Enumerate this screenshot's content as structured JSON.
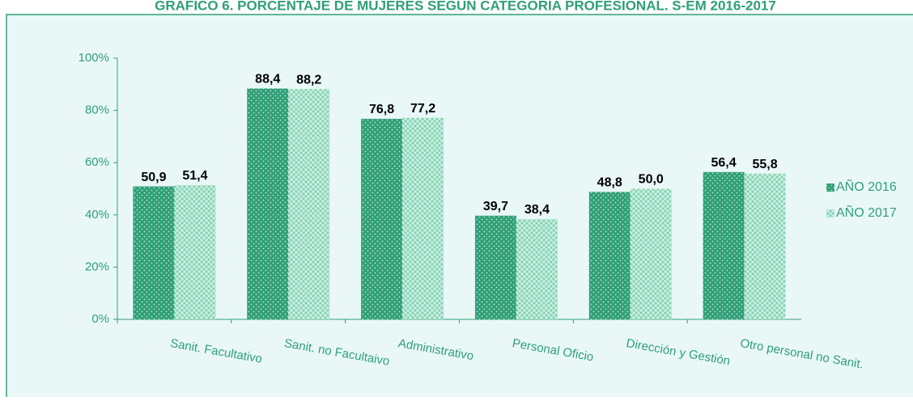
{
  "chart_data": {
    "type": "bar",
    "title": "GRÁFICO 6. PORCENTAJE DE MUJERES SEGÚN CATEGORÍA PROFESIONAL. S-EM 2016-2017",
    "categories": [
      "Sanit. Facultativo",
      "Sanit. no Facultaivo",
      "Administrativo",
      "Personal Oficio",
      "Dirección y Gestión",
      "Otro personal no Sanit."
    ],
    "series": [
      {
        "name": "AÑO 2016",
        "color": "#2f9f77",
        "values": [
          50.9,
          88.4,
          76.8,
          39.7,
          48.8,
          56.4
        ],
        "value_labels": [
          "50,9",
          "88,4",
          "76,8",
          "39,7",
          "48,8",
          "56,4"
        ]
      },
      {
        "name": "AÑO 2017",
        "color": "#86d6b6",
        "values": [
          51.4,
          88.2,
          77.2,
          38.4,
          50.0,
          55.8
        ],
        "value_labels": [
          "51,4",
          "88,2",
          "77,2",
          "38,4",
          "50,0",
          "55,8"
        ]
      }
    ],
    "ylim": [
      0,
      100
    ],
    "yticks": [
      {
        "value": 0,
        "label": "0%"
      },
      {
        "value": 20,
        "label": "20%"
      },
      {
        "value": 40,
        "label": "40%"
      },
      {
        "value": 60,
        "label": "60%"
      },
      {
        "value": 80,
        "label": "80%"
      },
      {
        "value": 100,
        "label": "100%"
      }
    ],
    "legend": "right"
  }
}
